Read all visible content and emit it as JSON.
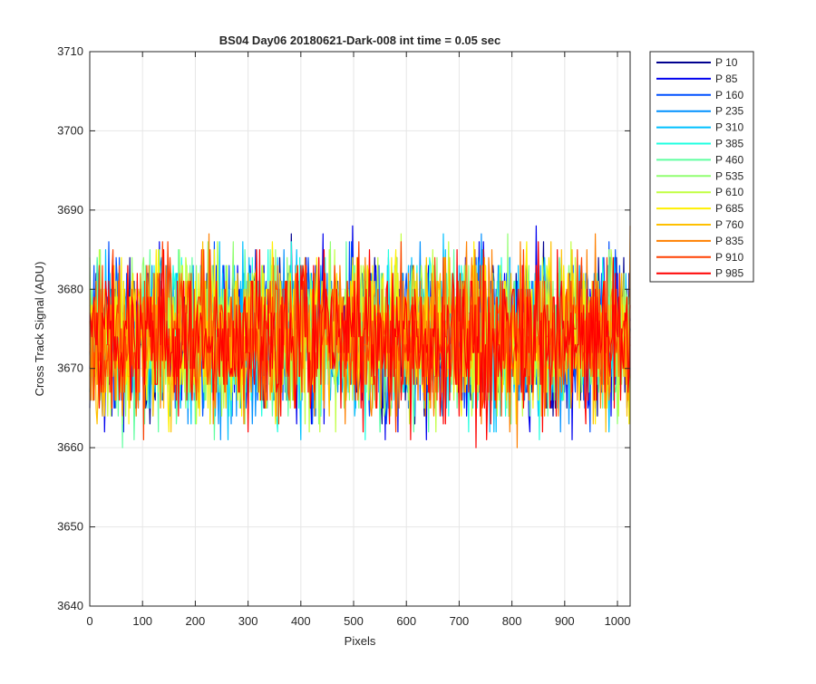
{
  "chart_data": {
    "type": "line",
    "title": "BS04 Day06 20180621-Dark-008 int time = 0.05 sec",
    "xlabel": "Pixels",
    "ylabel": "Cross Track Signal (ADU)",
    "xlim": [
      0,
      1024
    ],
    "ylim": [
      3640,
      3710
    ],
    "xticks": [
      0,
      100,
      200,
      300,
      400,
      500,
      600,
      700,
      800,
      900,
      1000
    ],
    "yticks": [
      3640,
      3650,
      3660,
      3670,
      3680,
      3690,
      3700,
      3710
    ],
    "xtick_labels": [
      "0",
      "100",
      "200",
      "300",
      "400",
      "500",
      "600",
      "700",
      "800",
      "900",
      "1000"
    ],
    "ytick_labels": [
      "3640",
      "3650",
      "3660",
      "3670",
      "3680",
      "3690",
      "3700",
      "3710"
    ],
    "grid": true,
    "legend_position": "outside-top-right",
    "series": [
      {
        "name": "P 10",
        "color": "#00008f",
        "mean": 3674,
        "spread": 9
      },
      {
        "name": "P 85",
        "color": "#0000ef",
        "mean": 3674,
        "spread": 9
      },
      {
        "name": "P 160",
        "color": "#0050ff",
        "mean": 3674,
        "spread": 9
      },
      {
        "name": "P 235",
        "color": "#0090ff",
        "mean": 3674,
        "spread": 9
      },
      {
        "name": "P 310",
        "color": "#00c0ff",
        "mean": 3674,
        "spread": 9
      },
      {
        "name": "P 385",
        "color": "#20ffe0",
        "mean": 3674,
        "spread": 9
      },
      {
        "name": "P 460",
        "color": "#60ffa0",
        "mean": 3674,
        "spread": 9
      },
      {
        "name": "P 535",
        "color": "#90ff70",
        "mean": 3674,
        "spread": 9
      },
      {
        "name": "P 610",
        "color": "#c0ff40",
        "mean": 3674,
        "spread": 9
      },
      {
        "name": "P 685",
        "color": "#ffef00",
        "mean": 3674,
        "spread": 9
      },
      {
        "name": "P 760",
        "color": "#ffc000",
        "mean": 3674,
        "spread": 9
      },
      {
        "name": "P 835",
        "color": "#ff8000",
        "mean": 3674,
        "spread": 9
      },
      {
        "name": "P 910",
        "color": "#ff4000",
        "mean": 3674,
        "spread": 9
      },
      {
        "name": "P 985",
        "color": "#ff0000",
        "mean": 3674,
        "spread": 9
      }
    ]
  }
}
